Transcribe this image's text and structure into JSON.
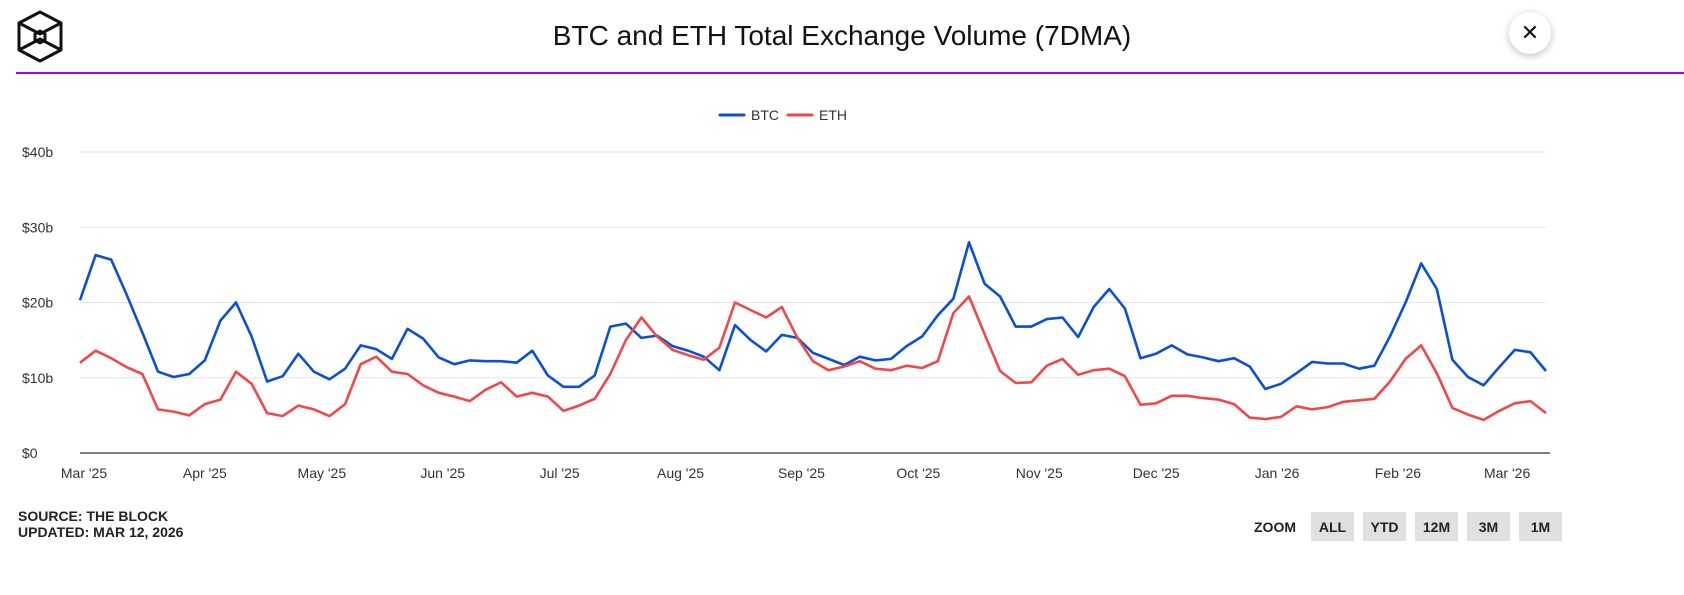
{
  "header": {
    "title": "BTC and ETH Total Exchange Volume (7DMA)",
    "logo": "the-block-cube-logo",
    "close_icon": "close-icon"
  },
  "footer": {
    "source": "SOURCE: THE BLOCK",
    "updated": "UPDATED: MAR 12, 2026"
  },
  "zoom": {
    "label": "ZOOM",
    "buttons": [
      "ALL",
      "YTD",
      "12M",
      "3M",
      "1M"
    ]
  },
  "colors": {
    "btc": "#0b4fd6",
    "eth": "#f04848",
    "accent": "#b000f0",
    "grid": "#e6e6e6"
  },
  "chart_data": {
    "type": "line",
    "title": "BTC and ETH Total Exchange Volume (7DMA)",
    "legend": {
      "placement": "top-center",
      "entries": [
        "BTC",
        "ETH"
      ]
    },
    "grid": true,
    "ylim": [
      0,
      40
    ],
    "yticks": [
      0,
      10,
      20,
      30,
      40
    ],
    "ytick_labels": [
      "$0",
      "$10b",
      "$20b",
      "$30b",
      "$40b"
    ],
    "xlim": [
      "2025-03-01",
      "2026-03-12"
    ],
    "xticks": [
      "2025-03-01",
      "2025-04-01",
      "2025-05-01",
      "2025-06-01",
      "2025-07-01",
      "2025-08-01",
      "2025-09-01",
      "2025-10-01",
      "2025-11-01",
      "2025-12-01",
      "2026-01-01",
      "2026-02-01",
      "2026-03-01"
    ],
    "xtick_labels": [
      "Mar '25",
      "Apr '25",
      "May '25",
      "Jun '25",
      "Jul '25",
      "Aug '25",
      "Sep '25",
      "Oct '25",
      "Nov '25",
      "Dec '25",
      "Jan '26",
      "Feb '26",
      "Mar '26"
    ],
    "x": [
      "2025-03-01",
      "2025-03-05",
      "2025-03-09",
      "2025-03-13",
      "2025-03-17",
      "2025-03-21",
      "2025-03-25",
      "2025-03-29",
      "2025-04-02",
      "2025-04-06",
      "2025-04-10",
      "2025-04-14",
      "2025-04-18",
      "2025-04-22",
      "2025-04-26",
      "2025-04-30",
      "2025-05-04",
      "2025-05-08",
      "2025-05-12",
      "2025-05-16",
      "2025-05-20",
      "2025-05-24",
      "2025-05-28",
      "2025-06-01",
      "2025-06-05",
      "2025-06-09",
      "2025-06-13",
      "2025-06-17",
      "2025-06-21",
      "2025-06-25",
      "2025-06-29",
      "2025-07-03",
      "2025-07-07",
      "2025-07-11",
      "2025-07-15",
      "2025-07-19",
      "2025-07-23",
      "2025-07-27",
      "2025-07-31",
      "2025-08-04",
      "2025-08-08",
      "2025-08-12",
      "2025-08-16",
      "2025-08-20",
      "2025-08-24",
      "2025-08-28",
      "2025-09-01",
      "2025-09-05",
      "2025-09-09",
      "2025-09-13",
      "2025-09-17",
      "2025-09-21",
      "2025-09-25",
      "2025-09-29",
      "2025-10-03",
      "2025-10-07",
      "2025-10-11",
      "2025-10-15",
      "2025-10-19",
      "2025-10-23",
      "2025-10-27",
      "2025-10-31",
      "2025-11-04",
      "2025-11-08",
      "2025-11-12",
      "2025-11-16",
      "2025-11-20",
      "2025-11-24",
      "2025-11-28",
      "2025-12-02",
      "2025-12-06",
      "2025-12-10",
      "2025-12-14",
      "2025-12-18",
      "2025-12-22",
      "2025-12-26",
      "2025-12-30",
      "2026-01-03",
      "2026-01-07",
      "2026-01-11",
      "2026-01-15",
      "2026-01-19",
      "2026-01-23",
      "2026-01-27",
      "2026-01-31",
      "2026-02-04",
      "2026-02-08",
      "2026-02-12",
      "2026-02-16",
      "2026-02-20",
      "2026-02-24",
      "2026-02-28",
      "2026-03-04",
      "2026-03-08",
      "2026-03-12"
    ],
    "series": [
      {
        "name": "BTC",
        "color": "#0b4fd6",
        "values": [
          20.3,
          26.3,
          25.7,
          21,
          16,
          10.8,
          10.1,
          10.5,
          12.3,
          17.6,
          20,
          15.5,
          9.5,
          10.2,
          13.2,
          10.8,
          9.8,
          11.2,
          14.3,
          13.8,
          12.5,
          16.5,
          15.2,
          12.7,
          11.8,
          12.3,
          12.2,
          12.2,
          12,
          13.6,
          10.3,
          8.8,
          8.8,
          10.3,
          16.8,
          17.2,
          15.3,
          15.6,
          14.2,
          13.6,
          12.8,
          11,
          17,
          15,
          13.5,
          15.7,
          15.3,
          13.3,
          12.5,
          11.7,
          12.8,
          12.3,
          12.5,
          14.2,
          15.5,
          18.3,
          20.5,
          28,
          22.5,
          20.8,
          16.8,
          16.8,
          17.8,
          18,
          15.4,
          19.4,
          21.8,
          19.2,
          12.6,
          13.2,
          14.3,
          13.1,
          12.7,
          12.2,
          12.6,
          11.5,
          8.5,
          9.2,
          10.6,
          12.1,
          11.9,
          11.9,
          11.2,
          11.6,
          15.5,
          20,
          25.2,
          21.8,
          12.4,
          10.1,
          9,
          11.4,
          13.7,
          13.4,
          10.9
        ]
      },
      {
        "name": "ETH",
        "color": "#f04848",
        "values": [
          12,
          13.6,
          12.6,
          11.4,
          10.5,
          5.8,
          5.5,
          5,
          6.5,
          7.1,
          10.8,
          9.2,
          5.3,
          4.9,
          6.3,
          5.8,
          4.9,
          6.5,
          11.8,
          12.8,
          10.8,
          10.5,
          9,
          8,
          7.5,
          6.9,
          8.4,
          9.4,
          7.5,
          8,
          7.5,
          5.6,
          6.3,
          7.2,
          10.5,
          15,
          18,
          15.5,
          13.7,
          13,
          12.4,
          14,
          20,
          19,
          18,
          19.4,
          15.3,
          12.2,
          11,
          11.5,
          12.2,
          11.2,
          11,
          11.6,
          11.3,
          12.2,
          18.6,
          20.8,
          15.8,
          10.9,
          9.3,
          9.4,
          11.6,
          12.5,
          10.4,
          11,
          11.2,
          10.2,
          6.4,
          6.6,
          7.6,
          7.6,
          7.3,
          7.1,
          6.5,
          4.7,
          4.5,
          4.8,
          6.2,
          5.8,
          6.1,
          6.8,
          7,
          7.2,
          9.5,
          12.5,
          14.3,
          10.6,
          6,
          5.1,
          4.4,
          5.6,
          6.6,
          6.9,
          5.3
        ]
      }
    ]
  }
}
